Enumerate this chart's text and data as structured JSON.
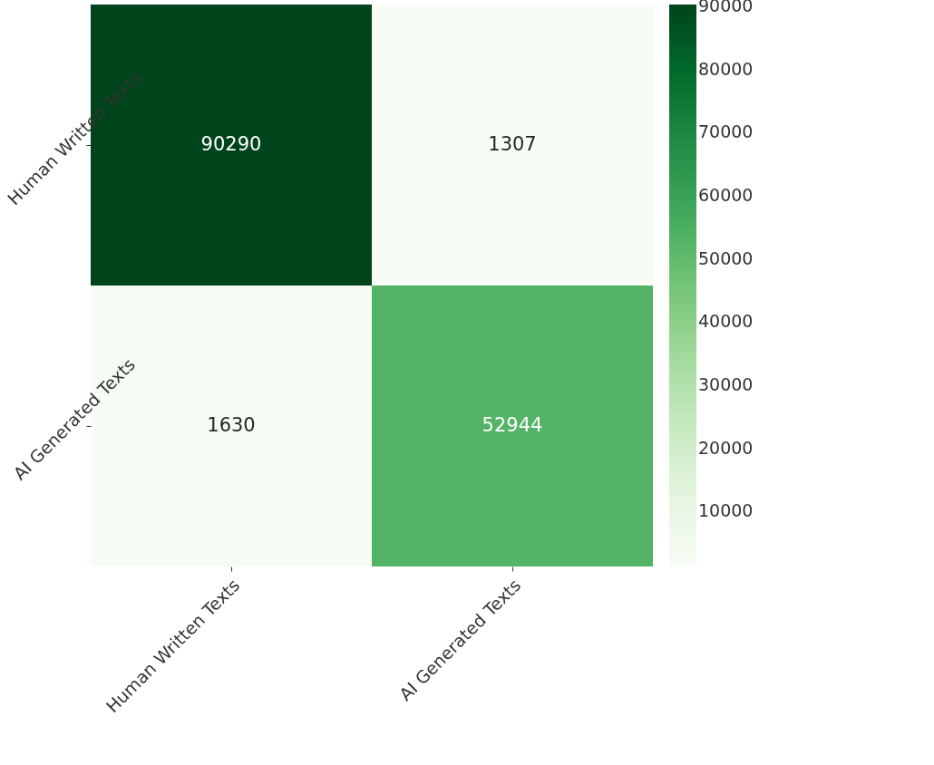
{
  "chart_data": {
    "type": "heatmap",
    "categories": [
      "Human Written Texts",
      "AI Generated Texts"
    ],
    "y_categories": [
      "Human Written Texts",
      "AI Generated Texts"
    ],
    "cells": [
      [
        90290,
        1307
      ],
      [
        1630,
        52944
      ]
    ],
    "data_labels": true,
    "clim": [
      1307,
      90290
    ],
    "cticks": [
      10000,
      20000,
      30000,
      40000,
      50000,
      60000,
      70000,
      80000,
      90000
    ]
  }
}
